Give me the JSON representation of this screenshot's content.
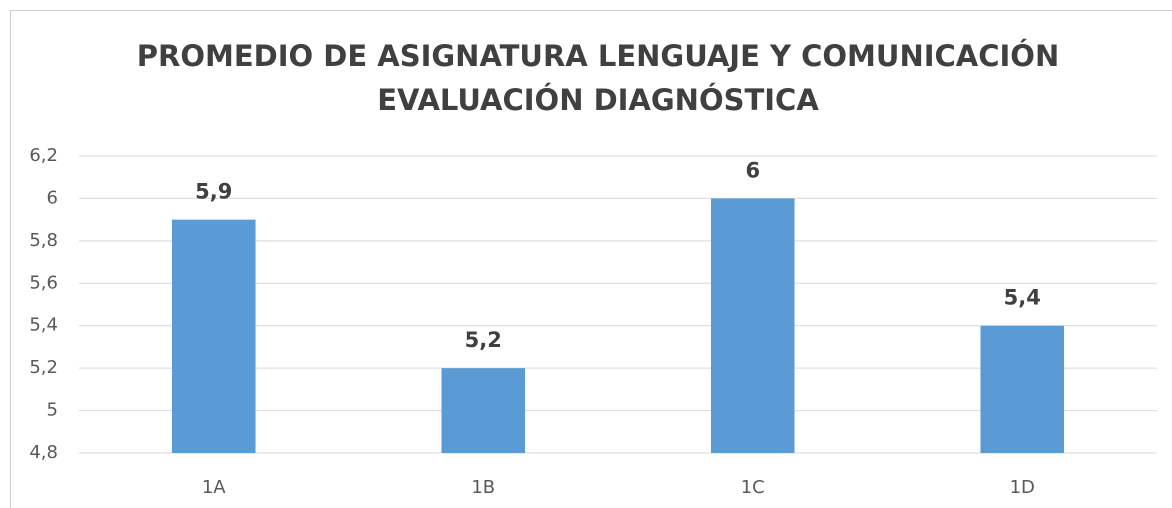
{
  "chart_data": {
    "type": "bar",
    "title": [
      "PROMEDIO DE ASIGNATURA LENGUAJE Y COMUNICACIÓN",
      "EVALUACIÓN DIAGNÓSTICA"
    ],
    "categories": [
      "1A",
      "1B",
      "1C",
      "1D"
    ],
    "values": [
      5.9,
      5.2,
      6,
      5.4
    ],
    "value_labels": [
      "5,9",
      "5,2",
      "6",
      "5,4"
    ],
    "color": "#5b9bd5",
    "ylim": [
      4.8,
      6.2
    ],
    "yticks": [
      {
        "value": 4.8,
        "label": "4,8"
      },
      5,
      {
        "value": 5.2,
        "label": "5,2"
      },
      {
        "value": 5.4,
        "label": "5,4"
      },
      {
        "value": 5.6,
        "label": "5,6"
      },
      {
        "value": 5.8,
        "label": "5,8"
      },
      6,
      {
        "value": 6.2,
        "label": "6,2"
      }
    ],
    "grid": true
  }
}
